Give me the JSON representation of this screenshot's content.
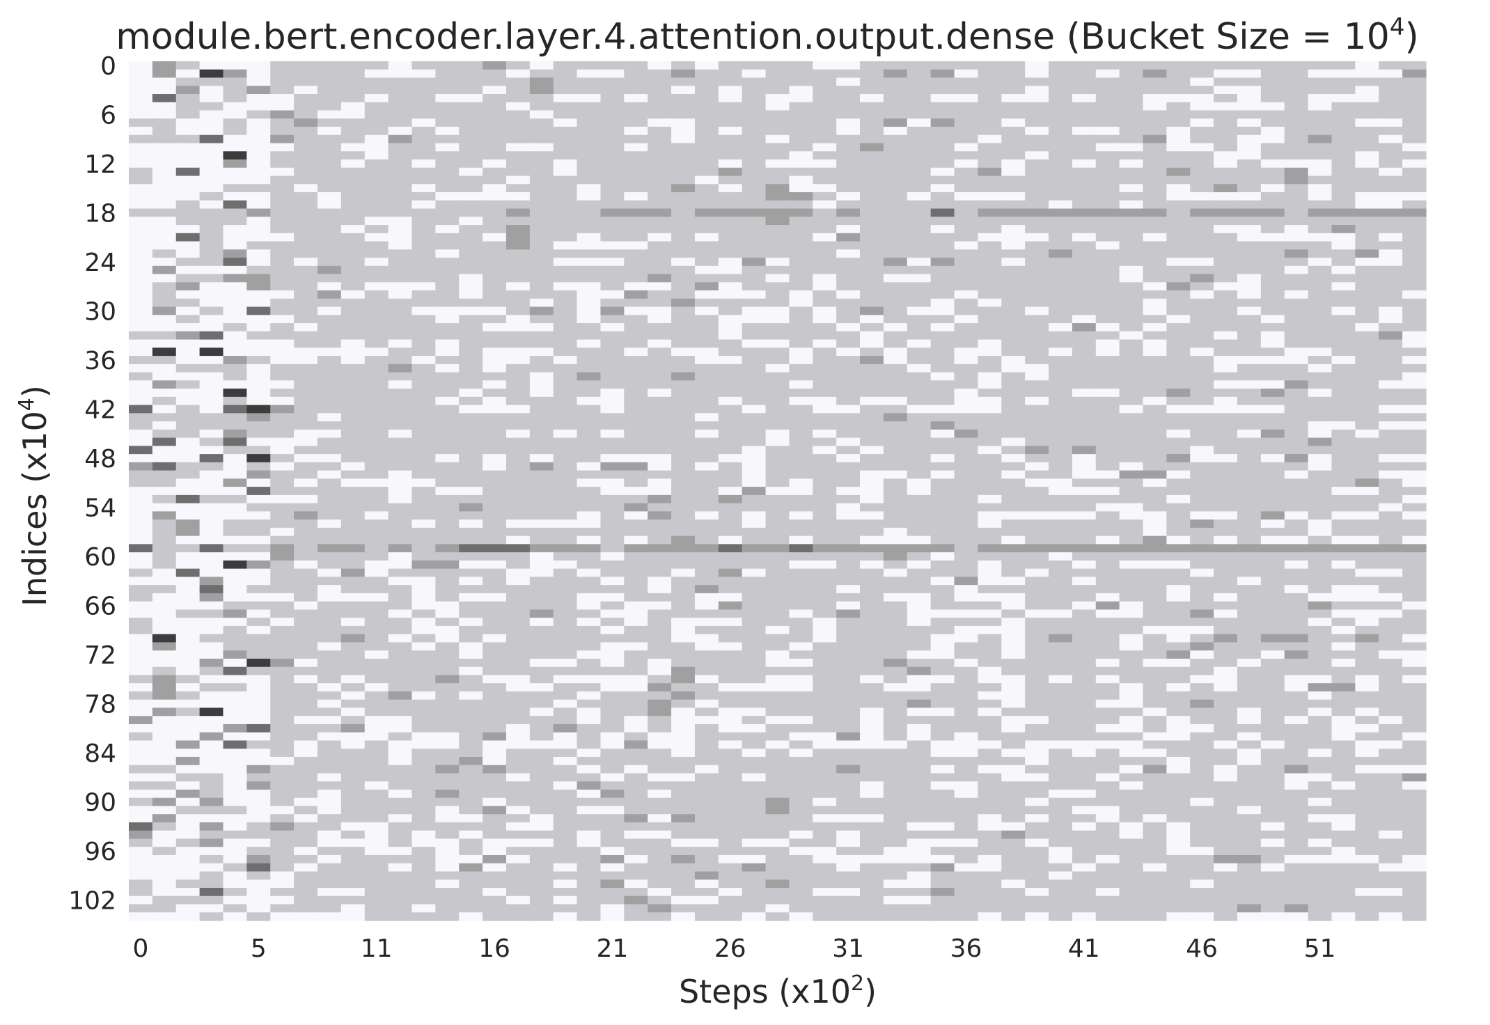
{
  "chart_data": {
    "type": "heatmap",
    "title": {
      "prefix": "module.bert.encoder.layer.4.attention.output.dense (Bucket Size = 10",
      "exponent": "4",
      "suffix": ")"
    },
    "xlabel": {
      "prefix": "Steps (x10",
      "exponent": "2",
      "suffix": ")"
    },
    "ylabel": {
      "prefix": "Indices (x10",
      "exponent": "4",
      "suffix": ")"
    },
    "x_tick_labels": [
      "0",
      "5",
      "11",
      "16",
      "21",
      "26",
      "31",
      "36",
      "41",
      "46",
      "51"
    ],
    "x_tick_columns": [
      0,
      5,
      10,
      15,
      20,
      25,
      30,
      35,
      40,
      45,
      50
    ],
    "y_tick_labels": [
      "0",
      "6",
      "12",
      "18",
      "24",
      "30",
      "36",
      "42",
      "48",
      "54",
      "60",
      "66",
      "72",
      "78",
      "84",
      "90",
      "96",
      "102"
    ],
    "y_tick_rows": [
      0,
      6,
      12,
      18,
      24,
      30,
      36,
      42,
      48,
      54,
      60,
      66,
      72,
      78,
      84,
      90,
      96,
      102
    ],
    "n_columns": 55,
    "n_rows": 105,
    "colormap": {
      "0": "#f7f7fc",
      "1": "#c8c8cc",
      "2": "#a0a0a0",
      "3": "#6e6e6e",
      "4": "#3c3c3c",
      "5": "#0e0e0e"
    },
    "special_rows": {
      "18": [
        1,
        1,
        1,
        1,
        1,
        2,
        1,
        1,
        1,
        1,
        1,
        1,
        1,
        1,
        1,
        1,
        2,
        1,
        1,
        1,
        2,
        2,
        2,
        1,
        2,
        2,
        2,
        2,
        2,
        1,
        2,
        1,
        1,
        1,
        3,
        1,
        2,
        2,
        2,
        2,
        2,
        2,
        2,
        2,
        1,
        2,
        2,
        2,
        2,
        1,
        2,
        2,
        2,
        2,
        2
      ],
      "59": [
        3,
        1,
        1,
        3,
        1,
        1,
        2,
        1,
        2,
        2,
        1,
        2,
        1,
        2,
        3,
        3,
        3,
        2,
        2,
        2,
        1,
        2,
        2,
        2,
        2,
        3,
        2,
        2,
        3,
        2,
        2,
        2,
        2,
        2,
        2,
        1,
        2,
        2,
        2,
        2,
        2,
        2,
        2,
        2,
        2,
        2,
        2,
        2,
        2,
        2,
        2,
        2,
        2,
        2,
        2
      ]
    },
    "column_density": [
      0.3,
      0.3,
      0.3,
      0.3,
      0.3,
      0.3,
      0.7,
      0.75,
      0.75,
      0.75,
      0.75,
      0.75,
      0.75,
      0.75,
      0.75,
      0.75,
      0.75,
      0.75,
      0.75,
      0.75,
      0.75,
      0.75,
      0.75,
      0.75,
      0.75,
      0.75,
      0.75,
      0.75,
      0.75,
      0.75,
      0.75,
      0.75,
      0.75,
      0.75,
      0.75,
      0.75,
      0.75,
      0.75,
      0.75,
      0.75,
      0.75,
      0.75,
      0.75,
      0.75,
      0.75,
      0.75,
      0.75,
      0.75,
      0.75,
      0.75,
      0.75,
      0.75,
      0.75,
      0.75,
      0.75
    ],
    "grid": false
  }
}
